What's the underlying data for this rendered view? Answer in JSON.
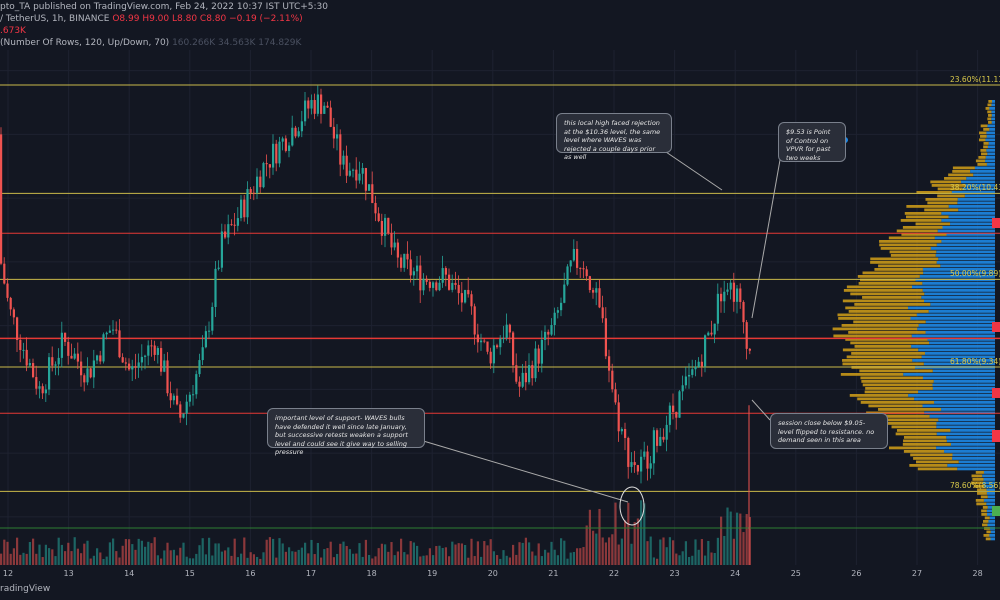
{
  "header": {
    "title_line": "pto_TA published on TradingView.com, Feb 24, 2022 10:37 IST UTC+5:30",
    "symbol_line_prefix": "/ TetherUS, 1h, BINANCE",
    "ohlc": "O8.99 H9.00 L8.80 C8.80 −0.19 (−2.11%)",
    "volume": ".673K",
    "vpvr_line": "(Number Of Rows, 120, Up/Down, 70)",
    "vpvr_values": "160.266K  34.563K  174.829K"
  },
  "colors": {
    "background": "#131722",
    "bull": "#26a69a",
    "bear": "#ef5350",
    "fib_line": "#c9b94a",
    "red_line": "#e53935",
    "green_line": "#2e7d32",
    "vp_up": "#1e88e5",
    "vp_down": "#d4a017"
  },
  "chart_data": {
    "type": "candlestick",
    "x_ticks": [
      "12",
      "13",
      "14",
      "15",
      "16",
      "17",
      "18",
      "19",
      "20",
      "21",
      "22",
      "23",
      "24",
      "25",
      "26",
      "27",
      "28"
    ],
    "fib_levels": [
      {
        "label": "23.60%(11.11)",
        "price": 11.11
      },
      {
        "label": "38.20%(10.43)",
        "price": 10.43
      },
      {
        "label": "50.00%(9.89)",
        "price": 9.89
      },
      {
        "label": "61.80%(9.34)",
        "price": 9.34
      },
      {
        "label": "78.60%(8.56)",
        "price": 8.56
      }
    ],
    "red_levels": [
      10.18,
      9.52,
      9.05
    ],
    "green_level": 8.33,
    "price_path": [
      [
        11.5,
        10.8
      ],
      [
        12,
        9.7
      ],
      [
        12.5,
        9.2
      ],
      [
        12.9,
        9.5
      ],
      [
        13.3,
        9.3
      ],
      [
        13.7,
        9.6
      ],
      [
        14,
        9.3
      ],
      [
        14.4,
        9.5
      ],
      [
        14.8,
        9.0
      ],
      [
        15.2,
        9.4
      ],
      [
        15.5,
        10.1
      ],
      [
        15.8,
        10.3
      ],
      [
        16.2,
        10.6
      ],
      [
        16.6,
        10.8
      ],
      [
        17,
        11.0
      ],
      [
        17.2,
        11.0
      ],
      [
        17.5,
        10.6
      ],
      [
        17.8,
        10.6
      ],
      [
        18.1,
        10.3
      ],
      [
        18.4,
        10.0
      ],
      [
        18.8,
        9.9
      ],
      [
        19.2,
        9.9
      ],
      [
        19.6,
        9.7
      ],
      [
        19.9,
        9.4
      ],
      [
        20.2,
        9.6
      ],
      [
        20.4,
        9.2
      ],
      [
        20.7,
        9.4
      ],
      [
        21,
        9.6
      ],
      [
        21.3,
        10.0
      ],
      [
        21.5,
        10.0
      ],
      [
        21.8,
        9.6
      ],
      [
        22,
        9.1
      ],
      [
        22.2,
        8.8
      ],
      [
        22.4,
        8.7
      ],
      [
        22.7,
        8.9
      ],
      [
        23,
        9.1
      ],
      [
        23.3,
        9.3
      ],
      [
        23.6,
        9.6
      ],
      [
        23.8,
        9.9
      ],
      [
        24,
        9.8
      ],
      [
        24.2,
        9.5
      ],
      [
        24.4,
        8.9
      ]
    ],
    "annotations": [
      "this local high faced rejection at the $10.36 level, the same level where WAVES was rejected a couple days prior as well",
      "$9.53 is Point of Control on VPVR for past two weeks",
      "important level of support- WAVES bulls have defended it well since late January, but successive retests weaken a support level and could see it give way to selling pressure",
      "session close below $9.05- level flipped to resistance. no demand seen in this area"
    ],
    "ylim": [
      8.2,
      11.5
    ],
    "grid": true
  },
  "footer": {
    "brand": "radingView"
  }
}
